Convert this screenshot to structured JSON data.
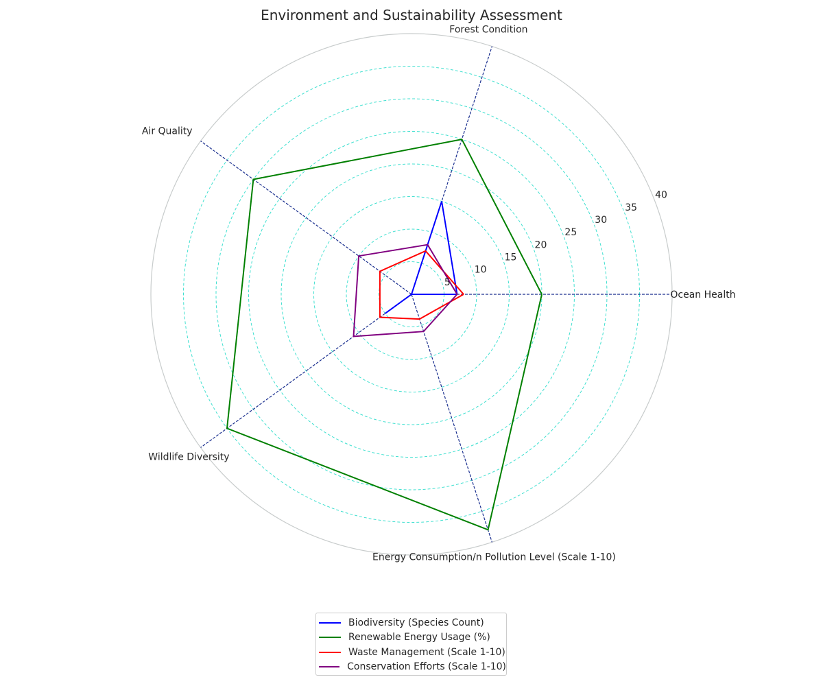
{
  "chart_data": {
    "type": "radar",
    "title": "Environment and Sustainability Assessment",
    "categories": [
      "Ocean Health",
      "Forest Condition",
      "Air Quality",
      "Wildlife Diversity",
      "Energy Consumption/n Pollution Level (Scale 1-10)"
    ],
    "radial_ticks": [
      5,
      10,
      15,
      20,
      25,
      30,
      35,
      40
    ],
    "rlim": [
      0,
      40
    ],
    "grid": true,
    "legend_position": "bottom-center",
    "series": [
      {
        "name": "Biodiversity (Species Count)",
        "color": "#0000ff",
        "values": [
          7,
          15,
          0,
          5,
          0
        ]
      },
      {
        "name": "Renewable Energy Usage (%)",
        "color": "#008000",
        "values": [
          20,
          25,
          30,
          35,
          38
        ]
      },
      {
        "name": "Waste Management (Scale 1-10)",
        "color": "#ff0000",
        "values": [
          8,
          7,
          6,
          6,
          4
        ]
      },
      {
        "name": "Conservation Efforts (Scale 1-10)",
        "color": "#800080",
        "values": [
          7,
          8,
          10,
          11,
          6
        ]
      }
    ]
  }
}
